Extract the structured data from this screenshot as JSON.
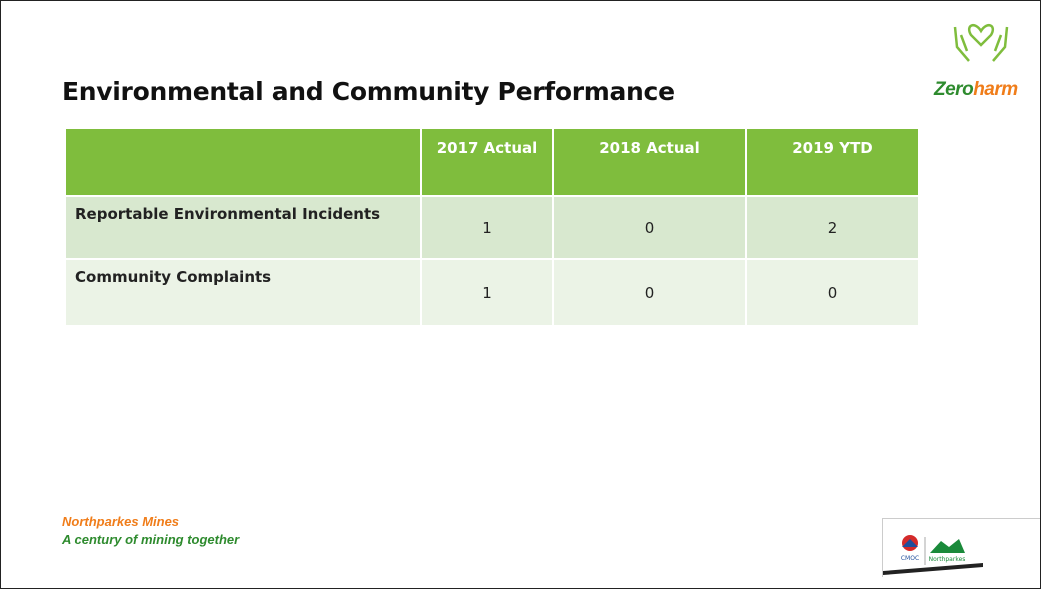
{
  "title": "Environmental and Community Performance",
  "logo": {
    "parts": [
      "Zero",
      "harm"
    ]
  },
  "table": {
    "columns": [
      "2017 Actual",
      "2018 Actual",
      "2019 YTD"
    ],
    "rows": [
      {
        "label": "Reportable Environmental Incidents",
        "values": [
          1,
          0,
          2
        ]
      },
      {
        "label": "Community Complaints",
        "values": [
          1,
          0,
          0
        ]
      }
    ]
  },
  "footer": {
    "line1": "Northparkes Mines",
    "line2": "A century of mining together"
  },
  "partner_logo": {
    "left": "CMOC",
    "right": "Northparkes"
  }
}
